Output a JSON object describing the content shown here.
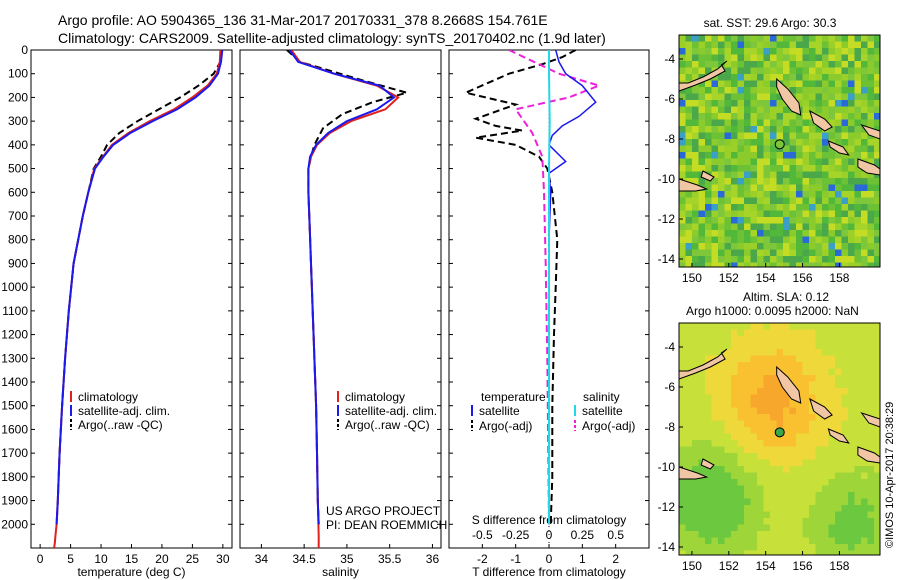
{
  "header": {
    "line1": "Argo profile: AO 5904365_136 31-Mar-2017 20170331_378 8.2668S 154.761E",
    "line2": "Climatology: CARS2009. Satellite-adjusted climatology: synTS_20170402.nc (1.9d later)"
  },
  "colors": {
    "climatology": "#e0201a",
    "satellite": "#1a1aee",
    "argo": "#000000",
    "satellite_salinity": "#22d8e6",
    "argo_salinity_adj": "#ee20d8"
  },
  "credit": "©IMOS 10-Apr-2017 20:38:29",
  "project_note": [
    "US ARGO PROJECT",
    "PI: DEAN ROEMMICH"
  ],
  "chart_data": [
    {
      "id": "temperature",
      "type": "line",
      "xlabel": "temperature (deg C)",
      "xlim": [
        -1.5,
        31.5
      ],
      "xticks": [
        0,
        5,
        10,
        15,
        20,
        25,
        30
      ],
      "ylim": [
        2100,
        0
      ],
      "yticks": [
        0,
        100,
        200,
        300,
        400,
        500,
        600,
        700,
        800,
        900,
        1000,
        1100,
        1200,
        1300,
        1400,
        1500,
        1600,
        1700,
        1800,
        1900,
        2000
      ],
      "legend": [
        "climatology",
        "satellite-adj. clim.",
        "Argo(..raw -QC)"
      ],
      "series": [
        {
          "name": "climatology",
          "x": [
            29.6,
            29.5,
            29.0,
            27.5,
            25.0,
            22.0,
            18.0,
            14.5,
            11.8,
            10.3,
            8.9,
            7.9,
            7.0,
            5.5,
            4.7,
            4.1,
            3.6,
            3.2,
            2.9,
            2.7,
            2.5,
            2.4,
            2.3
          ],
          "y": [
            0,
            50,
            100,
            150,
            200,
            250,
            300,
            350,
            400,
            450,
            500,
            600,
            700,
            900,
            1100,
            1300,
            1500,
            1700,
            1900,
            2000,
            2050,
            2080,
            2100
          ]
        },
        {
          "name": "satellite-adj. clim.",
          "x": [
            29.9,
            29.7,
            29.2,
            27.8,
            25.5,
            22.5,
            18.5,
            14.8,
            12.0,
            10.4,
            9.0,
            7.9,
            7.0,
            5.5,
            4.7,
            4.1,
            3.6,
            3.2,
            2.9,
            2.7
          ],
          "y": [
            0,
            50,
            100,
            150,
            200,
            250,
            300,
            350,
            400,
            450,
            500,
            600,
            700,
            900,
            1100,
            1300,
            1500,
            1700,
            1900,
            2000
          ]
        },
        {
          "name": "Argo(..raw -QC)",
          "x": [
            29.8,
            29.6,
            28.5,
            26.0,
            23.0,
            19.5,
            16.0,
            13.0,
            11.0,
            10.0,
            8.8,
            7.9,
            7.0,
            5.5,
            4.7,
            4.1,
            3.6,
            3.2,
            2.9,
            2.7
          ],
          "y": [
            0,
            50,
            100,
            150,
            200,
            250,
            300,
            350,
            400,
            450,
            500,
            600,
            700,
            900,
            1100,
            1300,
            1500,
            1700,
            1900,
            2000
          ]
        }
      ]
    },
    {
      "id": "salinity",
      "type": "line",
      "xlabel": "salinity",
      "xlim": [
        33.75,
        36.1
      ],
      "xticks": [
        34,
        34.5,
        35,
        35.5,
        36
      ],
      "ylim": [
        2100,
        0
      ],
      "legend": [
        "climatology",
        "satellite-adj. clim.",
        "Argo(..raw -QC)"
      ],
      "series": [
        {
          "name": "climatology",
          "x": [
            34.35,
            34.45,
            34.85,
            35.35,
            35.6,
            35.45,
            35.05,
            34.8,
            34.65,
            34.58,
            34.55,
            34.55,
            34.56,
            34.58,
            34.6,
            34.62,
            34.64,
            34.65,
            34.66,
            34.67,
            34.67
          ],
          "y": [
            0,
            50,
            100,
            150,
            200,
            250,
            300,
            350,
            400,
            450,
            500,
            600,
            700,
            900,
            1100,
            1300,
            1500,
            1700,
            1900,
            2050,
            2100
          ]
        },
        {
          "name": "satellite-adj. clim.",
          "x": [
            34.33,
            34.43,
            34.85,
            35.38,
            35.55,
            35.35,
            35.0,
            34.78,
            34.64,
            34.57,
            34.55,
            34.55,
            34.56,
            34.58,
            34.6,
            34.62,
            34.64,
            34.65,
            34.66,
            34.67
          ],
          "y": [
            0,
            50,
            100,
            150,
            200,
            250,
            300,
            350,
            400,
            450,
            500,
            600,
            700,
            900,
            1100,
            1300,
            1500,
            1700,
            1900,
            2000
          ]
        },
        {
          "name": "Argo(..raw -QC)",
          "x": [
            34.3,
            34.45,
            35.2,
            35.7,
            35.3,
            34.95,
            34.72,
            34.62,
            34.58,
            34.55,
            34.55,
            34.56,
            34.58,
            34.6,
            34.62,
            34.64,
            34.65,
            34.66,
            34.67
          ],
          "y": [
            0,
            50,
            130,
            180,
            220,
            270,
            330,
            400,
            450,
            500,
            600,
            700,
            900,
            1100,
            1300,
            1500,
            1700,
            1900,
            2000
          ]
        }
      ]
    },
    {
      "id": "difference",
      "type": "line",
      "top_xlabel": "S difference from climatology",
      "top_xticks": [
        -0.5,
        -0.25,
        0,
        0.25,
        0.5
      ],
      "xlabel": "T difference from climatology",
      "xticks": [
        -2,
        -1,
        0,
        1,
        2
      ],
      "xlim": [
        -3,
        3
      ],
      "ylim": [
        2100,
        0
      ],
      "legend_groups": [
        {
          "heading": "temperature",
          "items": [
            "satellite",
            "Argo(-adj)"
          ]
        },
        {
          "heading": "salinity",
          "items": [
            "satellite",
            "Argo(-adj)"
          ]
        }
      ],
      "series": [
        {
          "name": "satellite",
          "quantity": "temperature",
          "x": [
            0.2,
            0.3,
            0.5,
            1.0,
            1.4,
            0.9,
            0.4,
            0.1,
            0.0,
            0.5,
            0.0,
            0.05,
            0.0,
            0.0,
            0.0,
            0.0
          ],
          "y": [
            0,
            50,
            100,
            150,
            220,
            280,
            320,
            360,
            400,
            470,
            520,
            600,
            800,
            1200,
            1600,
            2000
          ]
        },
        {
          "name": "Argo(-adj)",
          "quantity": "temperature",
          "x": [
            0.8,
            0.4,
            -0.2,
            -1.2,
            -2.5,
            -1.0,
            -2.2,
            -1.6,
            -0.8,
            -2.2,
            -1.0,
            -0.3,
            -0.05,
            0.1,
            0.25,
            0.2,
            0.15,
            0.1,
            0.1,
            0.05
          ],
          "y": [
            0,
            30,
            60,
            100,
            180,
            230,
            290,
            320,
            340,
            370,
            400,
            450,
            500,
            600,
            800,
            1000,
            1200,
            1500,
            1800,
            2000
          ]
        },
        {
          "name": "satellite",
          "quantity": "salinity",
          "x": [
            0.0,
            0.0,
            0.02,
            0.0,
            0.0,
            0.0,
            0.0
          ],
          "y": [
            0,
            100,
            300,
            500,
            800,
            1200,
            2000
          ]
        },
        {
          "name": "Argo(-adj)",
          "quantity": "salinity",
          "x": [
            -1.2,
            -0.6,
            0.3,
            1.5,
            0.6,
            -1.0,
            -0.5,
            -0.2,
            -0.15,
            -0.1,
            -0.05,
            0.0
          ],
          "y": [
            0,
            40,
            100,
            150,
            200,
            250,
            350,
            450,
            600,
            900,
            1300,
            2000
          ]
        }
      ]
    },
    {
      "id": "sst-map",
      "type": "heatmap",
      "title": "sat. SST: 29.6 Argo: 30.3",
      "xticks": [
        150,
        152,
        154,
        156,
        158
      ],
      "yticks": [
        -4,
        -6,
        -8,
        -10,
        -12,
        -14
      ],
      "xlim": [
        149.3,
        160.2
      ],
      "ylim": [
        -14.4,
        -2.8
      ],
      "argo_position": {
        "lon": 154.761,
        "lat": -8.2668
      }
    },
    {
      "id": "sla-map",
      "type": "heatmap",
      "title": [
        "Altim. SLA: 0.12",
        "Argo h1000: 0.0095 h2000: NaN"
      ],
      "xticks": [
        150,
        152,
        154,
        156,
        158
      ],
      "yticks": [
        -4,
        -6,
        -8,
        -10,
        -12,
        -14
      ],
      "xlim": [
        149.3,
        160.2
      ],
      "ylim": [
        -14.4,
        -2.8
      ],
      "argo_position": {
        "lon": 154.761,
        "lat": -8.2668
      }
    }
  ]
}
